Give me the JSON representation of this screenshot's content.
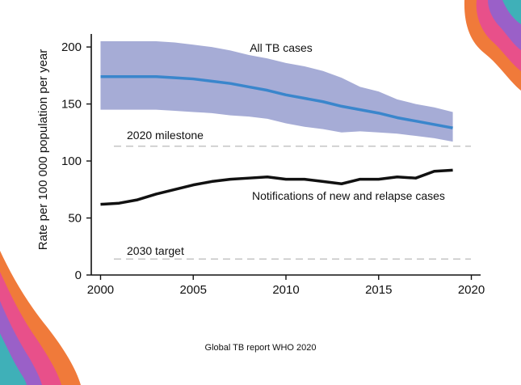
{
  "caption": "Global TB report WHO 2020",
  "colors": {
    "band_fill": "#a6acd6",
    "band_line": "#3a86cc",
    "notifications_line": "#111111",
    "reference_line": "#c4c4c4",
    "deco_orange": "#f07a3a",
    "deco_pink": "#e8508a",
    "deco_purple": "#9a60c8",
    "deco_teal": "#3fb0b8"
  },
  "chart_data": {
    "type": "line",
    "title": "",
    "xlabel": "",
    "ylabel": "Rate per 100 000 population per year",
    "xlim": [
      1999.5,
      2020.5
    ],
    "ylim": [
      0,
      210
    ],
    "xticks": [
      2000,
      2005,
      2010,
      2015,
      2020
    ],
    "yticks": [
      0,
      50,
      100,
      150,
      200
    ],
    "x": [
      2000,
      2001,
      2002,
      2003,
      2004,
      2005,
      2006,
      2007,
      2008,
      2009,
      2010,
      2011,
      2012,
      2013,
      2014,
      2015,
      2016,
      2017,
      2018,
      2019
    ],
    "series": [
      {
        "name": "All TB cases",
        "kind": "band",
        "values": [
          174,
          174,
          174,
          174,
          173,
          172,
          170,
          168,
          165,
          162,
          158,
          155,
          152,
          148,
          145,
          142,
          138,
          135,
          132,
          129
        ],
        "lower": [
          145,
          145,
          145,
          145,
          144,
          143,
          142,
          140,
          139,
          137,
          133,
          130,
          128,
          125,
          126,
          125,
          124,
          122,
          120,
          117
        ],
        "upper": [
          205,
          205,
          205,
          205,
          204,
          202,
          200,
          197,
          193,
          190,
          186,
          183,
          179,
          173,
          165,
          161,
          154,
          150,
          147,
          143
        ]
      },
      {
        "name": "Notifications of new and relapse cases",
        "kind": "line",
        "values": [
          62,
          63,
          66,
          71,
          75,
          79,
          82,
          84,
          85,
          86,
          84,
          84,
          82,
          80,
          84,
          84,
          86,
          85,
          91,
          92
        ]
      }
    ],
    "reference_lines": [
      {
        "label": "2020 milestone",
        "value": 113
      },
      {
        "label": "2030 target",
        "value": 14
      }
    ],
    "annotations": {
      "band_label": "All TB cases",
      "line_label": "Notifications of new and relapse cases"
    }
  }
}
